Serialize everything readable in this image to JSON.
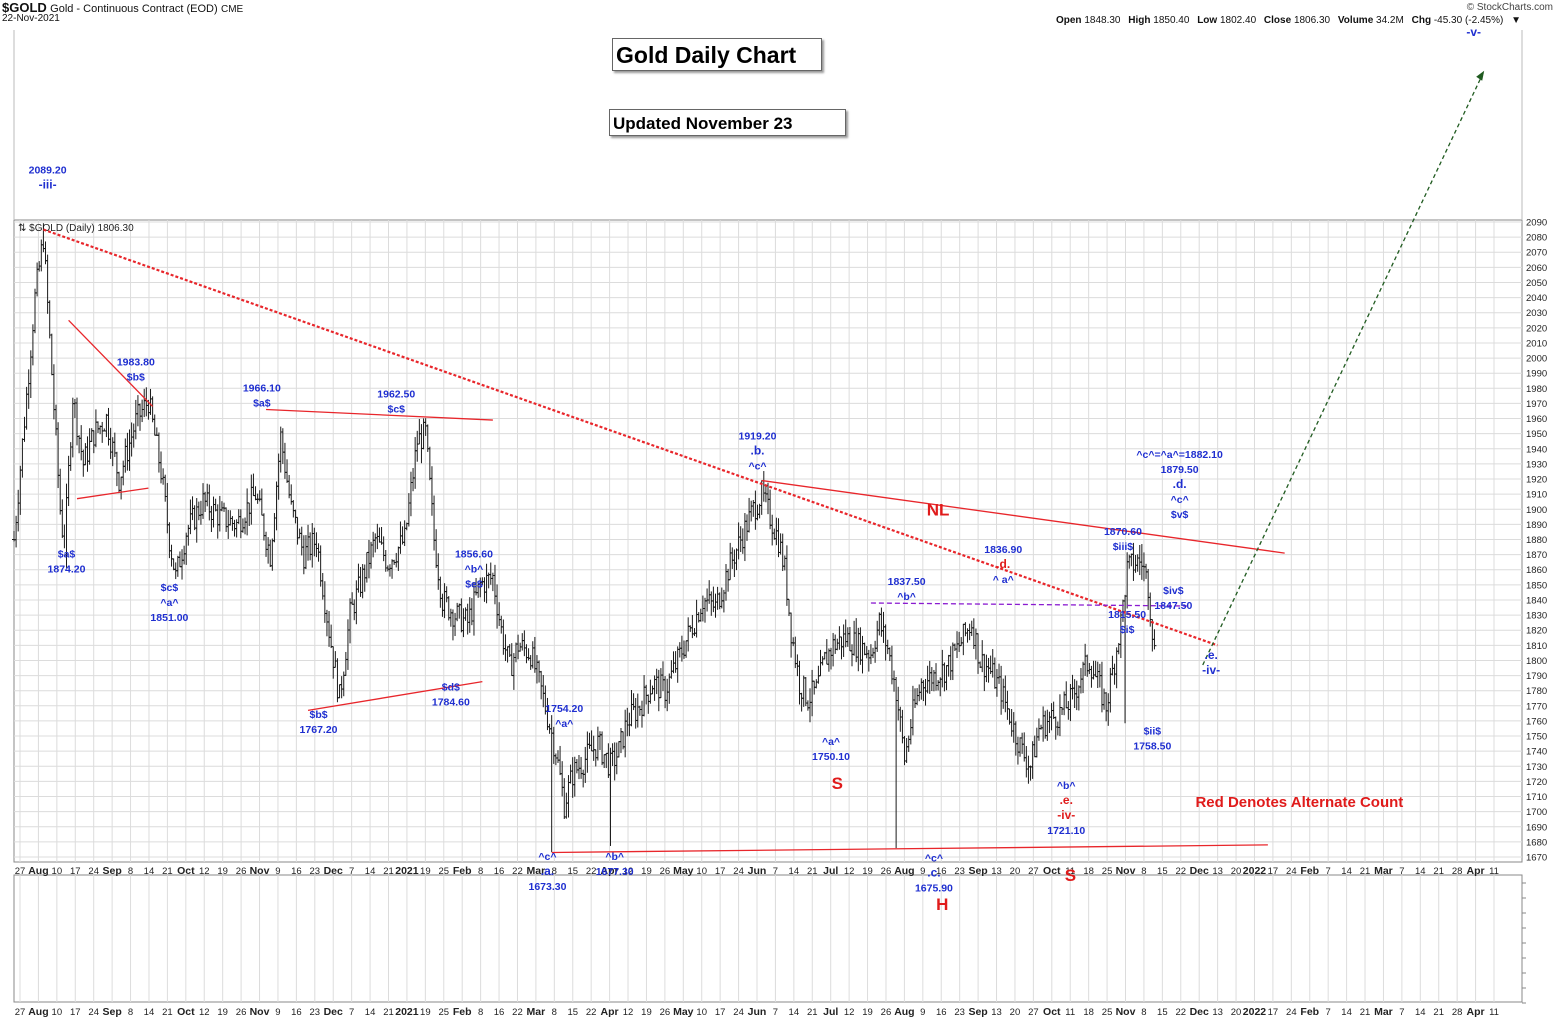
{
  "header": {
    "symbol": "$GOLD",
    "description": "Gold - Continuous Contract (EOD)",
    "exchange": "CME",
    "date": "22-Nov-2021",
    "copyright": "© StockCharts.com",
    "ohlc": [
      {
        "key": "Open",
        "value": "1848.30"
      },
      {
        "key": "High",
        "value": "1850.40"
      },
      {
        "key": "Low",
        "value": "1802.40"
      },
      {
        "key": "Close",
        "value": "1806.30"
      },
      {
        "key": "Volume",
        "value": "34.2M"
      },
      {
        "key": "Chg",
        "value": "-45.30 (-2.45%)"
      }
    ],
    "chg_arrow": "▼",
    "legend_label": "$GOLD (Daily) 1806.30"
  },
  "boxes": {
    "title": "Gold Daily Chart",
    "updated": "Updated November 23"
  },
  "colors": {
    "blue_label": "#1f2fd0",
    "red_label": "#e01b1b",
    "trend_red": "#e8262b",
    "neck_purple": "#8a1bd0",
    "target_green": "#1f5a1f",
    "bars": "#1a1a1a",
    "grid": "#dcdcdc"
  },
  "chart_data": {
    "type": "ohlc",
    "title": "Gold Daily Chart",
    "ylim": [
      1665,
      2095
    ],
    "yticks": [
      1670,
      1680,
      1690,
      1700,
      1710,
      1720,
      1730,
      1740,
      1750,
      1760,
      1770,
      1780,
      1790,
      1800,
      1810,
      1820,
      1830,
      1840,
      1850,
      1860,
      1870,
      1880,
      1890,
      1900,
      1910,
      1920,
      1930,
      1940,
      1950,
      1960,
      1970,
      1980,
      1990,
      2000,
      2010,
      2020,
      2030,
      2040,
      2050,
      2060,
      2070,
      2080,
      2090
    ],
    "x_tick_labels": [
      "27",
      "Aug",
      "10",
      "17",
      "24",
      "Sep",
      "8",
      "14",
      "21",
      "Oct",
      "12",
      "19",
      "26",
      "Nov",
      "9",
      "16",
      "23",
      "Dec",
      "7",
      "14",
      "21",
      "2021",
      "19",
      "25",
      "Feb",
      "8",
      "16",
      "22",
      "Mar",
      "8",
      "15",
      "22",
      "Apr",
      "12",
      "19",
      "26",
      "May",
      "10",
      "17",
      "24",
      "Jun",
      "7",
      "14",
      "21",
      "Jul",
      "12",
      "19",
      "26",
      "Aug",
      "9",
      "16",
      "23",
      "Sep",
      "13",
      "20",
      "27",
      "Oct",
      "11",
      "18",
      "25",
      "Nov",
      "8",
      "15",
      "22",
      "Dec",
      "13",
      "20",
      "2022",
      "17",
      "24",
      "Feb",
      "7",
      "14",
      "21",
      "Mar",
      "7",
      "14",
      "21",
      "28",
      "Apr",
      "11"
    ],
    "price_path": [
      {
        "d": 0,
        "p": 1880
      },
      {
        "d": 6,
        "p": 1975
      },
      {
        "d": 10,
        "p": 2040
      },
      {
        "d": 14,
        "p": 2080
      },
      {
        "d": 18,
        "p": 1990
      },
      {
        "d": 22,
        "p": 1900
      },
      {
        "d": 24,
        "p": 1874
      },
      {
        "d": 28,
        "p": 1975
      },
      {
        "d": 33,
        "p": 1930
      },
      {
        "d": 38,
        "p": 1950
      },
      {
        "d": 44,
        "p": 1960
      },
      {
        "d": 50,
        "p": 1920
      },
      {
        "d": 58,
        "p": 1958
      },
      {
        "d": 64,
        "p": 1972
      },
      {
        "d": 70,
        "p": 1925
      },
      {
        "d": 74,
        "p": 1880
      },
      {
        "d": 77,
        "p": 1855
      },
      {
        "d": 82,
        "p": 1885
      },
      {
        "d": 90,
        "p": 1905
      },
      {
        "d": 98,
        "p": 1895
      },
      {
        "d": 106,
        "p": 1890
      },
      {
        "d": 115,
        "p": 1910
      },
      {
        "d": 122,
        "p": 1870
      },
      {
        "d": 127,
        "p": 1948
      },
      {
        "d": 132,
        "p": 1900
      },
      {
        "d": 138,
        "p": 1870
      },
      {
        "d": 144,
        "p": 1880
      },
      {
        "d": 150,
        "p": 1820
      },
      {
        "d": 155,
        "p": 1775
      },
      {
        "d": 160,
        "p": 1830
      },
      {
        "d": 166,
        "p": 1855
      },
      {
        "d": 172,
        "p": 1880
      },
      {
        "d": 178,
        "p": 1865
      },
      {
        "d": 186,
        "p": 1880
      },
      {
        "d": 192,
        "p": 1945
      },
      {
        "d": 196,
        "p": 1950
      },
      {
        "d": 200,
        "p": 1880
      },
      {
        "d": 204,
        "p": 1840
      },
      {
        "d": 210,
        "p": 1830
      },
      {
        "d": 216,
        "p": 1825
      },
      {
        "d": 222,
        "p": 1850
      },
      {
        "d": 228,
        "p": 1855
      },
      {
        "d": 232,
        "p": 1820
      },
      {
        "d": 236,
        "p": 1795
      },
      {
        "d": 240,
        "p": 1810
      },
      {
        "d": 246,
        "p": 1805
      },
      {
        "d": 252,
        "p": 1775
      },
      {
        "d": 258,
        "p": 1740
      },
      {
        "d": 262,
        "p": 1705
      },
      {
        "d": 266,
        "p": 1725
      },
      {
        "d": 272,
        "p": 1735
      },
      {
        "d": 278,
        "p": 1745
      },
      {
        "d": 284,
        "p": 1730
      },
      {
        "d": 288,
        "p": 1740
      },
      {
        "d": 292,
        "p": 1760
      },
      {
        "d": 298,
        "p": 1770
      },
      {
        "d": 304,
        "p": 1785
      },
      {
        "d": 310,
        "p": 1780
      },
      {
        "d": 316,
        "p": 1800
      },
      {
        "d": 322,
        "p": 1820
      },
      {
        "d": 328,
        "p": 1840
      },
      {
        "d": 334,
        "p": 1835
      },
      {
        "d": 340,
        "p": 1860
      },
      {
        "d": 346,
        "p": 1880
      },
      {
        "d": 352,
        "p": 1900
      },
      {
        "d": 356,
        "p": 1910
      },
      {
        "d": 360,
        "p": 1895
      },
      {
        "d": 364,
        "p": 1880
      },
      {
        "d": 367,
        "p": 1860
      },
      {
        "d": 370,
        "p": 1820
      },
      {
        "d": 374,
        "p": 1785
      },
      {
        "d": 378,
        "p": 1775
      },
      {
        "d": 382,
        "p": 1780
      },
      {
        "d": 386,
        "p": 1800
      },
      {
        "d": 390,
        "p": 1810
      },
      {
        "d": 396,
        "p": 1815
      },
      {
        "d": 402,
        "p": 1810
      },
      {
        "d": 408,
        "p": 1805
      },
      {
        "d": 412,
        "p": 1825
      },
      {
        "d": 416,
        "p": 1808
      },
      {
        "d": 420,
        "p": 1780
      },
      {
        "d": 424,
        "p": 1735
      },
      {
        "d": 428,
        "p": 1765
      },
      {
        "d": 432,
        "p": 1785
      },
      {
        "d": 438,
        "p": 1790
      },
      {
        "d": 444,
        "p": 1795
      },
      {
        "d": 450,
        "p": 1810
      },
      {
        "d": 456,
        "p": 1825
      },
      {
        "d": 460,
        "p": 1800
      },
      {
        "d": 464,
        "p": 1795
      },
      {
        "d": 470,
        "p": 1780
      },
      {
        "d": 476,
        "p": 1755
      },
      {
        "d": 480,
        "p": 1740
      },
      {
        "d": 484,
        "p": 1730
      },
      {
        "d": 488,
        "p": 1755
      },
      {
        "d": 492,
        "p": 1760
      },
      {
        "d": 498,
        "p": 1765
      },
      {
        "d": 504,
        "p": 1775
      },
      {
        "d": 508,
        "p": 1790
      },
      {
        "d": 512,
        "p": 1800
      },
      {
        "d": 516,
        "p": 1785
      },
      {
        "d": 520,
        "p": 1770
      },
      {
        "d": 524,
        "p": 1800
      },
      {
        "d": 527,
        "p": 1825
      },
      {
        "d": 530,
        "p": 1860
      },
      {
        "d": 534,
        "p": 1865
      },
      {
        "d": 537,
        "p": 1865
      },
      {
        "d": 540,
        "p": 1850
      },
      {
        "d": 543,
        "p": 1806
      }
    ],
    "extremes": [
      {
        "d": 14,
        "high": 2089.2
      },
      {
        "d": 24,
        "low": 1874.2
      },
      {
        "d": 256,
        "low": 1673.3
      },
      {
        "d": 284,
        "low": 1677.3
      },
      {
        "d": 356,
        "high": 1919.2
      },
      {
        "d": 420,
        "low": 1675.9
      },
      {
        "d": 529,
        "low": 1758.5
      },
      {
        "d": 537,
        "high": 1877.0
      }
    ],
    "trendlines": [
      {
        "name": "major-downtrend",
        "style": "dotted",
        "color": "red",
        "from": {
          "d": 14,
          "p": 2085
        },
        "to": {
          "d": 573,
          "p": 1810
        }
      },
      {
        "name": "neckline",
        "style": "solid",
        "color": "red",
        "from": {
          "d": 356,
          "p": 1919
        },
        "to": {
          "d": 605,
          "p": 1871
        }
      },
      {
        "name": "base-support",
        "style": "solid",
        "color": "red",
        "from": {
          "d": 256,
          "p": 1673
        },
        "to": {
          "d": 597,
          "p": 1678
        }
      },
      {
        "name": "horizontal-resistance",
        "style": "dashed",
        "color": "purple",
        "from": {
          "d": 408,
          "p": 1838
        },
        "to": {
          "d": 559,
          "p": 1836
        }
      },
      {
        "name": "wedge-upper",
        "style": "solid",
        "color": "red",
        "from": {
          "d": 26,
          "p": 2025
        },
        "to": {
          "d": 66,
          "p": 1968
        }
      },
      {
        "name": "wedge-lower",
        "style": "solid",
        "color": "red",
        "from": {
          "d": 30,
          "p": 1907
        },
        "to": {
          "d": 64,
          "p": 1914
        }
      },
      {
        "name": "triangle-upper",
        "style": "solid",
        "color": "red",
        "from": {
          "d": 120,
          "p": 1966
        },
        "to": {
          "d": 228,
          "p": 1959
        }
      },
      {
        "name": "triangle-lower",
        "style": "solid",
        "color": "red",
        "from": {
          "d": 140,
          "p": 1767
        },
        "to": {
          "d": 223,
          "p": 1786
        }
      },
      {
        "name": "projection",
        "style": "dashed",
        "color": "green",
        "from": {
          "d": 566,
          "p": 1797
        },
        "to": {
          "d": 700,
          "p": 2190
        }
      }
    ],
    "annotations": [
      {
        "lines": [
          "2089.20",
          "-iii-"
        ],
        "d": 16,
        "p": 2122,
        "color": "blue"
      },
      {
        "lines": [
          "1983.80",
          "$b$"
        ],
        "d": 58,
        "p": 1995,
        "color": "blue"
      },
      {
        "lines": [
          "$a$",
          "1874.20"
        ],
        "d": 25,
        "p": 1868,
        "color": "blue"
      },
      {
        "lines": [
          "$c$",
          "^a^",
          "1851.00"
        ],
        "d": 74,
        "p": 1846,
        "color": "blue"
      },
      {
        "lines": [
          "1966.10",
          "$a$"
        ],
        "d": 118,
        "p": 1978,
        "color": "blue"
      },
      {
        "lines": [
          "1962.50",
          "$c$"
        ],
        "d": 182,
        "p": 1974,
        "color": "blue"
      },
      {
        "lines": [
          "$b$",
          "1767.20"
        ],
        "d": 145,
        "p": 1762,
        "color": "blue"
      },
      {
        "lines": [
          "1856.60",
          "^b^",
          "$e$"
        ],
        "d": 219,
        "p": 1868,
        "color": "blue"
      },
      {
        "lines": [
          "$d$",
          "1784.60"
        ],
        "d": 208,
        "p": 1780,
        "color": "blue"
      },
      {
        "lines": [
          "1754.20",
          "^a^"
        ],
        "d": 262,
        "p": 1766,
        "color": "blue"
      },
      {
        "lines": [
          "^c^",
          ".a.",
          "1673.30"
        ],
        "d": 254,
        "p": 1668,
        "color": "blue"
      },
      {
        "lines": [
          "^b^",
          "1677.30"
        ],
        "d": 286,
        "p": 1668,
        "color": "blue"
      },
      {
        "lines": [
          "1919.20",
          ".b.",
          "^c^"
        ],
        "d": 354,
        "p": 1946,
        "color": "blue"
      },
      {
        "lines": [
          "^a^",
          "1750.10"
        ],
        "d": 389,
        "p": 1744,
        "color": "blue"
      },
      {
        "lines": [
          "1837.50",
          "^b^"
        ],
        "d": 425,
        "p": 1850,
        "color": "blue"
      },
      {
        "lines": [
          "^c^",
          ".c.",
          "1675.90"
        ],
        "d": 438,
        "p": 1667,
        "color": "blue"
      },
      {
        "lines": [
          "1836.90",
          ".d.",
          "^ a^"
        ],
        "d": 471,
        "p": 1871,
        "color": "mixed"
      },
      {
        "lines": [
          "^b^",
          ".e.",
          "-iv-",
          "1721.10"
        ],
        "d": 501,
        "p": 1715,
        "color": "mixed"
      },
      {
        "lines": [
          "1815.50",
          "$i$"
        ],
        "d": 530,
        "p": 1828,
        "color": "blue"
      },
      {
        "lines": [
          "$ii$",
          "1758.50"
        ],
        "d": 542,
        "p": 1751,
        "color": "blue"
      },
      {
        "lines": [
          "1870.60",
          "$iii$"
        ],
        "d": 528,
        "p": 1883,
        "color": "blue"
      },
      {
        "lines": [
          "$iv$",
          "1847.50"
        ],
        "d": 552,
        "p": 1844,
        "color": "blue"
      },
      {
        "lines": [
          "^c^=^a^=1882.10",
          "1879.50",
          ".d.",
          "^c^",
          "$v$"
        ],
        "d": 555,
        "p": 1934,
        "color": "blue"
      },
      {
        "lines": [
          ".e.",
          "-iv-"
        ],
        "d": 570,
        "p": 1801,
        "color": "blue"
      },
      {
        "lines": [
          "-v-"
        ],
        "d": 695,
        "p": 2213,
        "color": "blue"
      },
      {
        "lines": [
          "NL"
        ],
        "d": 440,
        "p": 1896,
        "color": "red"
      },
      {
        "lines": [
          "S"
        ],
        "d": 392,
        "p": 1715,
        "color": "red"
      },
      {
        "lines": [
          "H"
        ],
        "d": 442,
        "p": 1635,
        "color": "red"
      },
      {
        "lines": [
          "S"
        ],
        "d": 503,
        "p": 1654,
        "color": "red"
      },
      {
        "lines": [
          "Red Denotes Alternate Count"
        ],
        "d": 612,
        "p": 1703,
        "color": "red"
      }
    ]
  }
}
